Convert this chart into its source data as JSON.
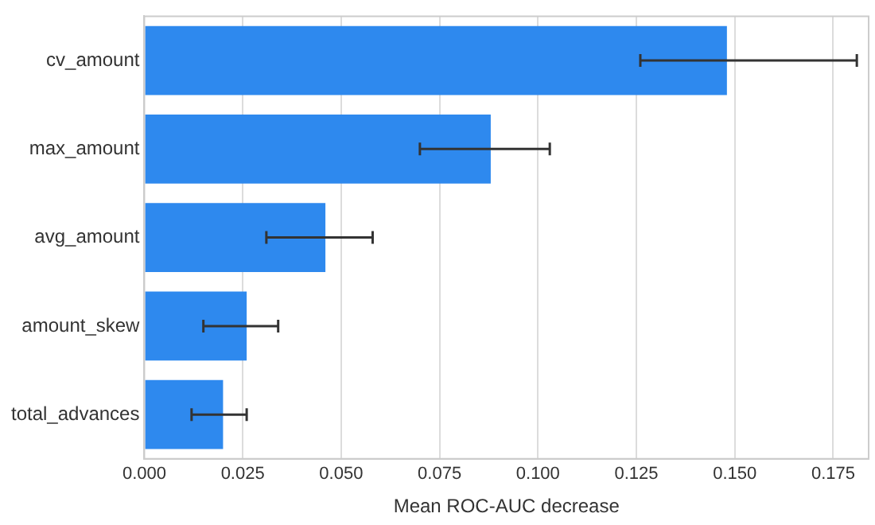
{
  "chart_data": {
    "type": "bar",
    "orientation": "horizontal",
    "xlabel": "Mean ROC-AUC decrease",
    "categories": [
      "cv_amount",
      "max_amount",
      "avg_amount",
      "amount_skew",
      "total_advances"
    ],
    "values": [
      0.148,
      0.088,
      0.046,
      0.026,
      0.02
    ],
    "errors": [
      [
        0.126,
        0.181
      ],
      [
        0.07,
        0.103
      ],
      [
        0.031,
        0.058
      ],
      [
        0.015,
        0.034
      ],
      [
        0.012,
        0.026
      ]
    ],
    "color": "#2e89ee",
    "xlim": [
      0,
      0.184
    ],
    "xticks": [
      {
        "value": 0,
        "label": "0.000"
      },
      {
        "value": 0.025,
        "label": "0.025"
      },
      {
        "value": 0.05,
        "label": "0.050"
      },
      {
        "value": 0.075,
        "label": "0.075"
      },
      {
        "value": 0.1,
        "label": "0.100"
      },
      {
        "value": 0.125,
        "label": "0.125"
      },
      {
        "value": 0.15,
        "label": "0.150"
      },
      {
        "value": 0.175,
        "label": "0.175"
      }
    ],
    "grid": "x"
  }
}
